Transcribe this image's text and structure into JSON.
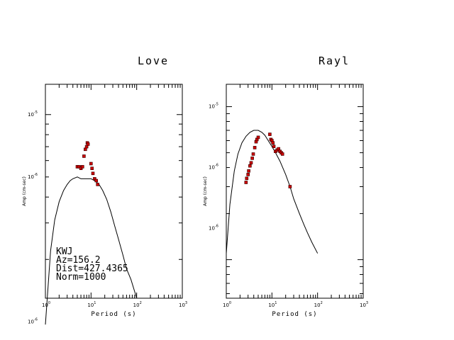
{
  "chart_data": [
    {
      "type": "scatter",
      "title": "Love",
      "xlabel": "Period (s)",
      "ylabel": "Amp (cm-sec)",
      "x_scale": "log",
      "y_scale": "log",
      "xlim": [
        1,
        1000
      ],
      "ylim": [
        1.3e-06,
        1.4e-05
      ],
      "x_tick_labels": [
        {
          "base": "10",
          "exp": "0",
          "value": 1
        },
        {
          "base": "10",
          "exp": "1",
          "value": 10
        },
        {
          "base": "10",
          "exp": "2",
          "value": 100
        },
        {
          "base": "10",
          "exp": "3",
          "value": 1000
        }
      ],
      "y_tick_labels": [
        {
          "base": "10",
          "exp": "-5",
          "value": 1e-05
        },
        {
          "base": "10",
          "exp": "-6",
          "value": 1e-06
        },
        {
          "base": "10",
          "exp": "-6",
          "value": 5e-06
        }
      ],
      "info_lines": [
        "KWJ",
        "Az=156.2",
        "Dist=427.4365",
        "Norm=1000"
      ],
      "marker_color": "#cc0000",
      "line_color": "#000000",
      "series": [
        {
          "kind": "line",
          "x": [
            1.0,
            1.3,
            1.6,
            2.0,
            2.5,
            3.0,
            3.5,
            4.0,
            5.0,
            6.0,
            7.0,
            8.0,
            10.0,
            12.0,
            15.0,
            18.0,
            22.0,
            27.0,
            33.0,
            40.0,
            50.0,
            60.0,
            75.0,
            100.0
          ],
          "y": [
            9.7e-07,
            2.2e-06,
            3.1e-06,
            3.8e-06,
            4.3e-06,
            4.6e-06,
            4.8e-06,
            4.9e-06,
            5e-06,
            4.9e-06,
            4.9e-06,
            4.9e-06,
            4.9e-06,
            4.8e-06,
            4.6e-06,
            4.3e-06,
            3.9e-06,
            3.4e-06,
            2.9e-06,
            2.5e-06,
            2.1e-06,
            1.8e-06,
            1.6e-06,
            1.3e-06
          ]
        },
        {
          "kind": "points",
          "x": [
            5.0,
            5.5,
            6.0,
            6.5,
            7.0,
            7.5,
            8.0,
            8.3,
            8.6,
            10.0,
            10.5,
            11.0,
            12.0,
            13.0,
            14.0
          ],
          "y": [
            5.6e-06,
            5.6e-06,
            5.5e-06,
            5.6e-06,
            6.3e-06,
            6.8e-06,
            7e-06,
            7.3e-06,
            7.2e-06,
            5.8e-06,
            5.5e-06,
            5.2e-06,
            4.9e-06,
            4.8e-06,
            4.6e-06
          ]
        }
      ]
    },
    {
      "type": "scatter",
      "title": "Rayl",
      "xlabel": "Period (s)",
      "ylabel": "Amp (cm-sec)",
      "x_scale": "log",
      "y_scale": "log",
      "xlim": [
        1,
        1000
      ],
      "ylim": [
        5.6e-07,
        1.4e-05
      ],
      "x_tick_labels": [
        {
          "base": "10",
          "exp": "0",
          "value": 1
        },
        {
          "base": "10",
          "exp": "1",
          "value": 10
        },
        {
          "base": "10",
          "exp": "2",
          "value": 100
        },
        {
          "base": "10",
          "exp": "3",
          "value": 1000
        }
      ],
      "y_tick_labels": [
        {
          "base": "10",
          "exp": "-5",
          "value": 1e-05
        },
        {
          "base": "10",
          "exp": "-6",
          "value": 4e-06
        },
        {
          "base": "10",
          "exp": "-6",
          "value": 1.6e-06
        }
      ],
      "marker_color": "#cc0000",
      "line_color": "#000000",
      "series": [
        {
          "kind": "line",
          "x": [
            1.0,
            1.2,
            1.5,
            1.8,
            2.2,
            2.7,
            3.3,
            4.0,
            5.0,
            6.0,
            7.0,
            8.0,
            10.0,
            12.0,
            15.0,
            20.0,
            25.0,
            30.0,
            40.0,
            50.0,
            60.0,
            75.0,
            100.0
          ],
          "y": [
            1.1e-06,
            2.3e-06,
            3.8e-06,
            4.9e-06,
            5.8e-06,
            6.4e-06,
            6.8e-06,
            7e-06,
            7e-06,
            6.8e-06,
            6.5e-06,
            6.1e-06,
            5.5e-06,
            5e-06,
            4.4e-06,
            3.6e-06,
            3e-06,
            2.5e-06,
            2e-06,
            1.7e-06,
            1.5e-06,
            1.3e-06,
            1.1e-06
          ]
        },
        {
          "kind": "points",
          "x": [
            2.7,
            2.8,
            3.0,
            3.1,
            3.3,
            3.5,
            3.7,
            3.9,
            4.2,
            4.5,
            4.7,
            5.0,
            9.0,
            9.5,
            10.0,
            10.5,
            11.0,
            12.0,
            13.0,
            14.0,
            15.0,
            16.0,
            17.0,
            25.0
          ],
          "y": [
            3.2e-06,
            3.4e-06,
            3.6e-06,
            3.8e-06,
            4.1e-06,
            4.3e-06,
            4.6e-06,
            4.9e-06,
            5.4e-06,
            5.9e-06,
            6.1e-06,
            6.3e-06,
            6.6e-06,
            6.1e-06,
            6e-06,
            5.8e-06,
            5.5e-06,
            5.1e-06,
            5.2e-06,
            5.3e-06,
            5.1e-06,
            5e-06,
            4.9e-06,
            3e-06
          ]
        }
      ]
    }
  ]
}
